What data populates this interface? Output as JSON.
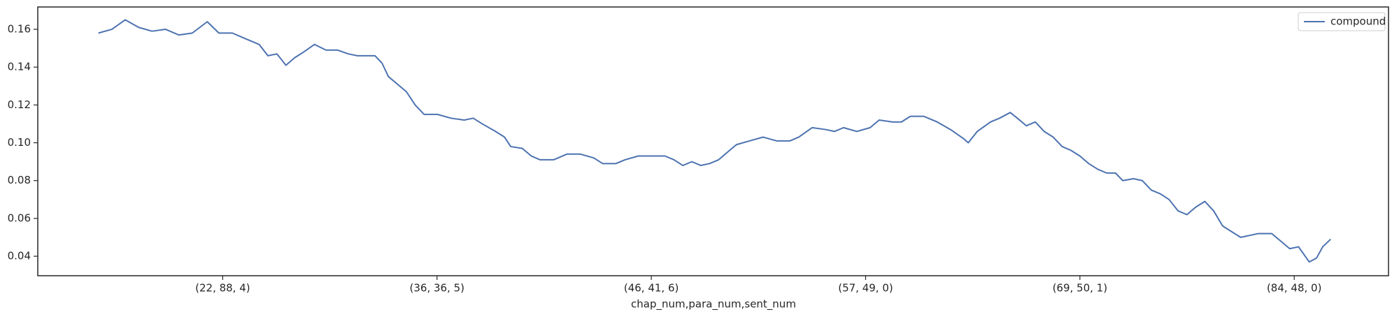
{
  "chart_data": {
    "type": "line",
    "x_label": "chap_num,para_num,sent_num",
    "x": [
      420,
      483,
      545,
      608,
      670,
      733,
      795,
      858,
      928,
      982,
      1045,
      1107,
      1170,
      1211,
      1253,
      1295,
      1336,
      1378,
      1428,
      1482,
      1536,
      1586,
      1628,
      1669,
      1711,
      1744,
      1773,
      1815,
      1857,
      1898,
      1940,
      2002,
      2065,
      2127,
      2169,
      2211,
      2273,
      2315,
      2344,
      2398,
      2440,
      2481,
      2544,
      2606,
      2669,
      2731,
      2773,
      2835,
      2877,
      2939,
      3002,
      3064,
      3106,
      3147,
      3189,
      3231,
      3272,
      3314,
      3355,
      3397,
      3459,
      3522,
      3584,
      3647,
      3688,
      3751,
      3813,
      3855,
      3897,
      3959,
      4021,
      4063,
      4126,
      4167,
      4209,
      4271,
      4334,
      4396,
      4459,
      4479,
      4521,
      4583,
      4625,
      4675,
      4708,
      4750,
      4792,
      4833,
      4875,
      4917,
      4958,
      5000,
      5041,
      5083,
      5125,
      5166,
      5200,
      5250,
      5291,
      5333,
      5375,
      5416,
      5458,
      5499,
      5541,
      5583,
      5624,
      5666,
      5708,
      5750,
      5791,
      5833,
      5895,
      5937,
      5979,
      6020,
      6070,
      6104,
      6133,
      6170
    ],
    "series": [
      {
        "name": "compound",
        "color": "#4c72b0",
        "values": [
          0.158,
          0.16,
          0.165,
          0.161,
          0.159,
          0.16,
          0.157,
          0.158,
          0.164,
          0.158,
          0.158,
          0.155,
          0.152,
          0.146,
          0.147,
          0.141,
          0.145,
          0.148,
          0.152,
          0.149,
          0.149,
          0.147,
          0.146,
          0.146,
          0.146,
          0.142,
          0.135,
          0.131,
          0.127,
          0.12,
          0.115,
          0.115,
          0.113,
          0.112,
          0.113,
          0.11,
          0.106,
          0.103,
          0.098,
          0.097,
          0.093,
          0.091,
          0.091,
          0.094,
          0.094,
          0.092,
          0.089,
          0.089,
          0.091,
          0.093,
          0.093,
          0.093,
          0.091,
          0.088,
          0.09,
          0.088,
          0.089,
          0.091,
          0.095,
          0.099,
          0.101,
          0.103,
          0.101,
          0.101,
          0.103,
          0.108,
          0.107,
          0.106,
          0.108,
          0.106,
          0.108,
          0.112,
          0.111,
          0.111,
          0.114,
          0.114,
          0.111,
          0.107,
          0.102,
          0.1,
          0.106,
          0.111,
          0.113,
          0.116,
          0.113,
          0.109,
          0.111,
          0.106,
          0.103,
          0.098,
          0.096,
          0.093,
          0.089,
          0.086,
          0.084,
          0.084,
          0.08,
          0.081,
          0.08,
          0.075,
          0.073,
          0.07,
          0.064,
          0.062,
          0.066,
          0.069,
          0.064,
          0.056,
          0.053,
          0.05,
          0.051,
          0.052,
          0.052,
          0.048,
          0.044,
          0.045,
          0.037,
          0.039,
          0.045,
          0.049
        ]
      }
    ],
    "xlim": [
      137,
      6440
    ],
    "xticks": [
      {
        "value": 1000,
        "label": "(22, 88, 4)"
      },
      {
        "value": 2000,
        "label": "(36, 36, 5)"
      },
      {
        "value": 3000,
        "label": "(46, 41, 6)"
      },
      {
        "value": 4000,
        "label": "(57, 49, 0)"
      },
      {
        "value": 5000,
        "label": "(69, 50, 1)"
      },
      {
        "value": 6000,
        "label": "(84, 48, 0)"
      }
    ],
    "ylim": [
      0.0297,
      0.1718
    ],
    "yticks": [
      {
        "value": 0.04,
        "label": "0.04"
      },
      {
        "value": 0.06,
        "label": "0.06"
      },
      {
        "value": 0.08,
        "label": "0.08"
      },
      {
        "value": 0.1,
        "label": "0.10"
      },
      {
        "value": 0.12,
        "label": "0.12"
      },
      {
        "value": 0.14,
        "label": "0.14"
      },
      {
        "value": 0.16,
        "label": "0.16"
      }
    ],
    "legend": "upper right"
  }
}
